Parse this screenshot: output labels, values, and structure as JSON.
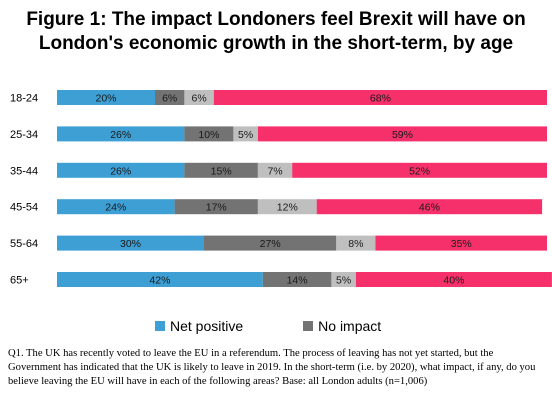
{
  "chart_data": {
    "type": "bar",
    "orientation": "horizontal-stacked-100",
    "title": "Figure 1: The impact Londoners feel Brexit will have on London's economic growth in the short-term, by age",
    "categories": [
      "18-24",
      "25-34",
      "35-44",
      "45-54",
      "55-64",
      "65+"
    ],
    "series": [
      {
        "name": "Net positive",
        "color": "#3d9fd4",
        "values": [
          20,
          26,
          26,
          24,
          30,
          42
        ]
      },
      {
        "name": "No impact",
        "color": "#737373",
        "values": [
          6,
          10,
          15,
          17,
          27,
          14
        ]
      },
      {
        "color": "#bfbfbf",
        "values": [
          6,
          5,
          7,
          12,
          8,
          5
        ]
      },
      {
        "color": "#f5306a",
        "values": [
          68,
          59,
          52,
          46,
          35,
          40
        ]
      }
    ],
    "value_suffix": "%",
    "legend": "bottom",
    "grid": false
  },
  "footnote": "Q1. The UK has recently voted to leave the EU in a referendum. The process of leaving has not yet started, but the Government has indicated that the UK is likely to leave in 2019.  In the short-term (i.e. by 2020), what impact, if any, do you believe leaving the EU will have in each of the following areas? Base:  all London adults (n=1,006)"
}
